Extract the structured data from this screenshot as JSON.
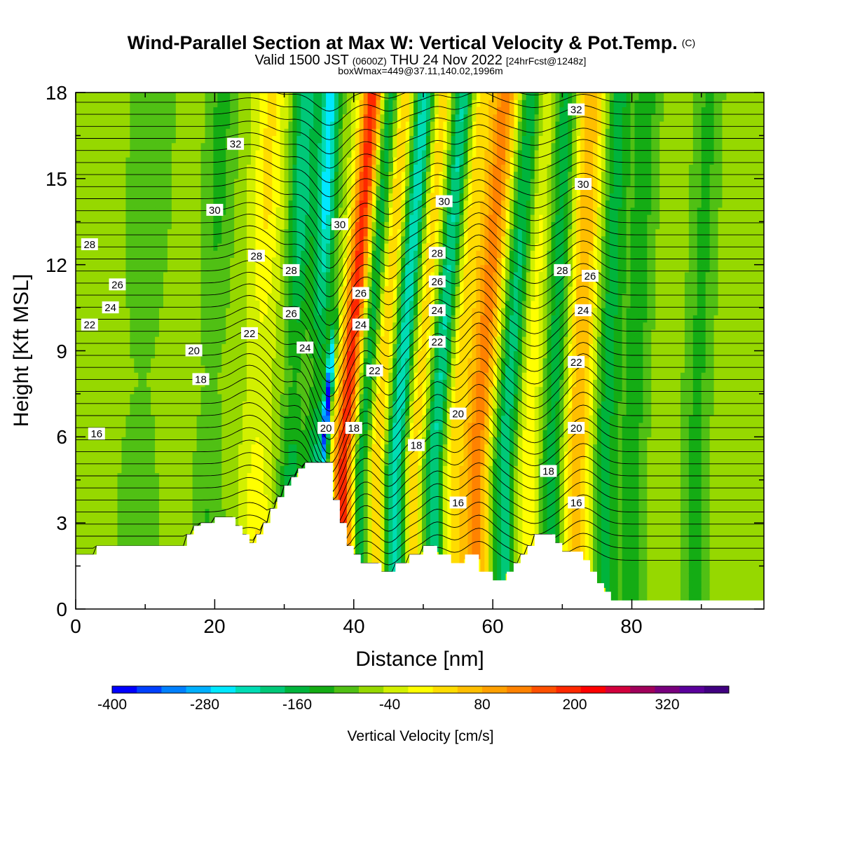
{
  "header": {
    "title_main": "Wind-Parallel Section at Max W: Vertical Velocity & Pot.Temp.",
    "title_mark": "(C)",
    "valid_a": "Valid 1500 JST",
    "valid_b": "(0600Z)",
    "valid_c": "THU 24 Nov 2022",
    "valid_d": "[24hrFcst@1248z]",
    "box_line": "boxWmax=449@37.11,140.02,1996m"
  },
  "chart_data": {
    "type": "heatmap",
    "title": "Wind-Parallel Section at Max W: Vertical Velocity & Pot.Temp.",
    "xlabel": "Distance [nm]",
    "ylabel": "Height [Kft MSL]",
    "xlim": [
      0,
      99
    ],
    "ylim": [
      0,
      18
    ],
    "x_ticks": [
      "0",
      "20",
      "40",
      "60",
      "80"
    ],
    "y_ticks": [
      "0",
      "3",
      "6",
      "9",
      "12",
      "15",
      "18"
    ],
    "colorbar": {
      "title": "Vertical Velocity [cm/s]",
      "tick_labels": [
        "-400",
        "-280",
        "-160",
        "-40",
        "80",
        "200",
        "320"
      ],
      "levels_min": -400,
      "levels_step": 40,
      "colors": [
        "#0000ff",
        "#0040ff",
        "#0080ff",
        "#00b0ff",
        "#00e8ff",
        "#00dcb4",
        "#00c878",
        "#00b43c",
        "#14ac14",
        "#50c014",
        "#96d800",
        "#d2f000",
        "#ffff00",
        "#ffdc00",
        "#ffbe00",
        "#ffa000",
        "#ff8200",
        "#ff5000",
        "#ff2800",
        "#ff0000",
        "#d2003c",
        "#a0005a",
        "#78007d",
        "#5a009b",
        "#400080"
      ]
    },
    "terrain_kft": [
      [
        0,
        1.9
      ],
      [
        3,
        1.9
      ],
      [
        3,
        2.2
      ],
      [
        16,
        2.2
      ],
      [
        16,
        2.6
      ],
      [
        17,
        2.6
      ],
      [
        17,
        2.9
      ],
      [
        18,
        2.9
      ],
      [
        18,
        3.0
      ],
      [
        20,
        3.0
      ],
      [
        20,
        3.2
      ],
      [
        23,
        3.2
      ],
      [
        23,
        2.9
      ],
      [
        24,
        2.9
      ],
      [
        24,
        2.6
      ],
      [
        25,
        2.6
      ],
      [
        25,
        2.3
      ],
      [
        26,
        2.3
      ],
      [
        26,
        2.6
      ],
      [
        27,
        2.6
      ],
      [
        27,
        3.0
      ],
      [
        28,
        3.0
      ],
      [
        28,
        3.5
      ],
      [
        29,
        3.5
      ],
      [
        29,
        3.9
      ],
      [
        30,
        3.9
      ],
      [
        30,
        4.3
      ],
      [
        31,
        4.3
      ],
      [
        31,
        4.6
      ],
      [
        32,
        4.6
      ],
      [
        32,
        4.9
      ],
      [
        33,
        4.9
      ],
      [
        33,
        5.1
      ],
      [
        37,
        5.1
      ],
      [
        37,
        3.8
      ],
      [
        38,
        3.8
      ],
      [
        38,
        3.0
      ],
      [
        39,
        3.0
      ],
      [
        39,
        2.2
      ],
      [
        40,
        2.2
      ],
      [
        40,
        1.9
      ],
      [
        41,
        1.9
      ],
      [
        41,
        1.6
      ],
      [
        44,
        1.6
      ],
      [
        44,
        1.3
      ],
      [
        46,
        1.3
      ],
      [
        46,
        1.6
      ],
      [
        48,
        1.6
      ],
      [
        48,
        1.9
      ],
      [
        50,
        1.9
      ],
      [
        50,
        2.2
      ],
      [
        52,
        2.2
      ],
      [
        52,
        1.9
      ],
      [
        54,
        1.9
      ],
      [
        54,
        1.6
      ],
      [
        56,
        1.6
      ],
      [
        56,
        1.9
      ],
      [
        58,
        1.9
      ],
      [
        58,
        1.3
      ],
      [
        60,
        1.3
      ],
      [
        60,
        1.0
      ],
      [
        62,
        1.0
      ],
      [
        62,
        1.3
      ],
      [
        63,
        1.3
      ],
      [
        63,
        1.6
      ],
      [
        64,
        1.6
      ],
      [
        64,
        1.9
      ],
      [
        65,
        1.9
      ],
      [
        65,
        2.2
      ],
      [
        66,
        2.2
      ],
      [
        66,
        2.6
      ],
      [
        69,
        2.6
      ],
      [
        69,
        2.3
      ],
      [
        70,
        2.3
      ],
      [
        70,
        2.0
      ],
      [
        73,
        2.0
      ],
      [
        73,
        1.7
      ],
      [
        74,
        1.7
      ],
      [
        74,
        1.3
      ],
      [
        75,
        1.3
      ],
      [
        75,
        0.9
      ],
      [
        76,
        0.9
      ],
      [
        76,
        0.6
      ],
      [
        77,
        0.6
      ],
      [
        77,
        0.3
      ],
      [
        99,
        0.3
      ]
    ],
    "theta_lines": [
      {
        "k": 16,
        "label": "16",
        "base_kft": 6.1,
        "pos": [
          [
            3,
            6.1
          ],
          [
            55,
            3.7
          ],
          [
            72,
            3.7
          ]
        ]
      },
      {
        "k": 18,
        "label": "18",
        "base_kft": 8.3,
        "pos": [
          [
            18,
            8.0
          ],
          [
            40,
            6.3
          ],
          [
            49,
            5.7
          ],
          [
            68,
            4.8
          ]
        ]
      },
      {
        "k": 20,
        "label": "20",
        "base_kft": 9.1,
        "pos": [
          [
            17,
            9.0
          ],
          [
            36,
            6.3
          ],
          [
            55,
            6.8
          ],
          [
            72,
            6.3
          ]
        ]
      },
      {
        "k": 22,
        "label": "22",
        "base_kft": 9.9,
        "pos": [
          [
            2,
            9.9
          ],
          [
            25,
            9.6
          ],
          [
            43,
            8.3
          ],
          [
            52,
            9.3
          ],
          [
            72,
            8.6
          ]
        ]
      },
      {
        "k": 24,
        "label": "24",
        "base_kft": 10.6,
        "pos": [
          [
            5,
            10.5
          ],
          [
            33,
            9.1
          ],
          [
            41,
            9.9
          ],
          [
            52,
            10.4
          ],
          [
            73,
            10.4
          ]
        ]
      },
      {
        "k": 26,
        "label": "26",
        "base_kft": 11.4,
        "pos": [
          [
            6,
            11.3
          ],
          [
            31,
            10.3
          ],
          [
            41,
            11.0
          ],
          [
            52,
            11.4
          ],
          [
            74,
            11.6
          ]
        ]
      },
      {
        "k": 28,
        "label": "28",
        "base_kft": 12.8,
        "pos": [
          [
            2,
            12.7
          ],
          [
            26,
            12.3
          ],
          [
            31,
            11.8
          ],
          [
            52,
            12.4
          ],
          [
            70,
            11.8
          ]
        ]
      },
      {
        "k": 30,
        "label": "30",
        "base_kft": 14.5,
        "pos": [
          [
            20,
            13.9
          ],
          [
            38,
            13.4
          ],
          [
            53,
            14.2
          ],
          [
            73,
            14.8
          ]
        ]
      },
      {
        "k": 32,
        "label": "32",
        "base_kft": 16.2,
        "pos": [
          [
            23,
            16.2
          ],
          [
            72,
            17.4
          ]
        ]
      }
    ]
  }
}
